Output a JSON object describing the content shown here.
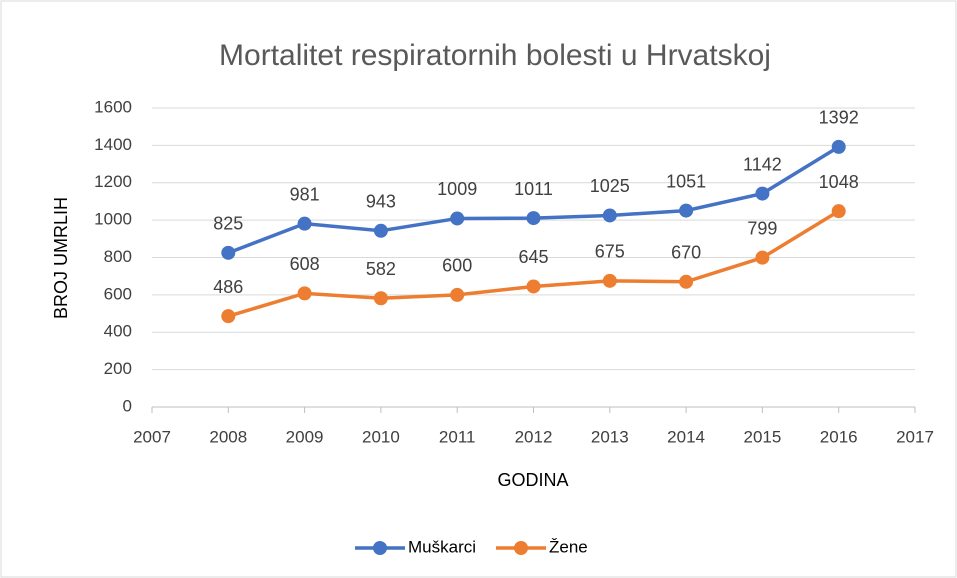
{
  "chart_data": {
    "type": "line",
    "title": "Mortalitet respiratornih bolesti u Hrvatskoj",
    "x_label": "GODINA",
    "y_label": "BROJ UMRLIH",
    "x": [
      2008,
      2009,
      2010,
      2011,
      2012,
      2013,
      2014,
      2015,
      2016
    ],
    "series": [
      {
        "name": "Muškarci",
        "color": "#4472c4",
        "values": [
          825,
          981,
          943,
          1009,
          1011,
          1025,
          1051,
          1142,
          1392
        ]
      },
      {
        "name": "Žene",
        "color": "#ed7d31",
        "values": [
          486,
          608,
          582,
          600,
          645,
          675,
          670,
          799,
          1048
        ]
      }
    ],
    "xlim": [
      2007,
      2017
    ],
    "xticks": [
      2007,
      2008,
      2009,
      2010,
      2011,
      2012,
      2013,
      2014,
      2015,
      2016,
      2017
    ],
    "ylim": [
      0,
      1600
    ],
    "yticks": [
      0,
      200,
      400,
      600,
      800,
      1000,
      1200,
      1400,
      1600
    ],
    "grid": true,
    "legend": "bottom",
    "data_labels": true
  }
}
